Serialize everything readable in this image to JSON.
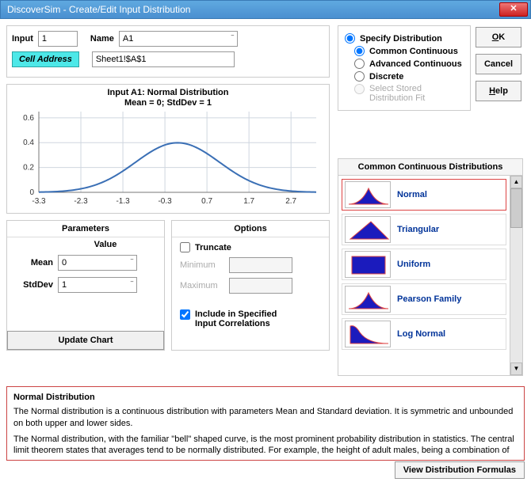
{
  "window": {
    "title": "DiscoverSim - Create/Edit Input Distribution"
  },
  "header": {
    "input_label": "Input",
    "input_value": "1",
    "name_label": "Name",
    "name_value": "A1",
    "celladdr_label": "Cell Address",
    "celladdr_value": "Sheet1!$A$1"
  },
  "chart": {
    "title_line1": "Input A1: Normal Distribution",
    "title_line2": "Mean = 0; StdDev = 1",
    "x_ticks": [
      "-3.3",
      "-2.3",
      "-1.3",
      "-0.3",
      "0.7",
      "1.7",
      "2.7"
    ],
    "y_ticks": [
      "0",
      "0.2",
      "0.4",
      "0.6"
    ],
    "xlim": [
      -3.3,
      3.3
    ],
    "ylim": [
      0,
      0.65
    ],
    "line_color": "#3a6fb5",
    "line_width": 2,
    "grid_color": "#cfd6df",
    "axis_color": "#777",
    "background_color": "#ffffff"
  },
  "params": {
    "header": "Parameters",
    "value_header": "Value",
    "mean_label": "Mean",
    "mean_value": "0",
    "stddev_label": "StdDev",
    "stddev_value": "1",
    "update_btn": "Update Chart"
  },
  "options": {
    "header": "Options",
    "truncate_label": "Truncate",
    "min_label": "Minimum",
    "max_label": "Maximum",
    "include_label_l1": "Include in Specified",
    "include_label_l2": "Input Correlations",
    "include_checked": true
  },
  "spec": {
    "specify_label": "Specify Distribution",
    "common_label": "Common Continuous",
    "advanced_label": "Advanced Continuous",
    "discrete_label": "Discrete",
    "stored_label_l1": "Select Stored",
    "stored_label_l2": "Distribution Fit",
    "selected": "common"
  },
  "buttons": {
    "ok": "OK",
    "cancel": "Cancel",
    "help": "Help"
  },
  "dist_list": {
    "header": "Common Continuous Distributions",
    "items": [
      {
        "label": "Normal",
        "shape": "normal",
        "selected": true
      },
      {
        "label": "Triangular",
        "shape": "triangle",
        "selected": false
      },
      {
        "label": "Uniform",
        "shape": "rect",
        "selected": false
      },
      {
        "label": "Pearson Family",
        "shape": "normal",
        "selected": false
      },
      {
        "label": "Log Normal",
        "shape": "lognormal",
        "selected": false
      }
    ],
    "icon_fill": "#1b1bbd",
    "icon_border": "#d44"
  },
  "description": {
    "title": "Normal Distribution",
    "para1": "The Normal distribution is a continuous distribution with parameters Mean and Standard deviation. It is symmetric and unbounded on both upper and lower sides.",
    "para2": "The Normal distribution, with the familiar \"bell\" shaped curve, is the most prominent probability distribution in statistics. The central limit theorem states that averages tend to be normally distributed. For example, the height of adult males, being a combination of"
  },
  "footer": {
    "view_formulas": "View Distribution Formulas"
  }
}
